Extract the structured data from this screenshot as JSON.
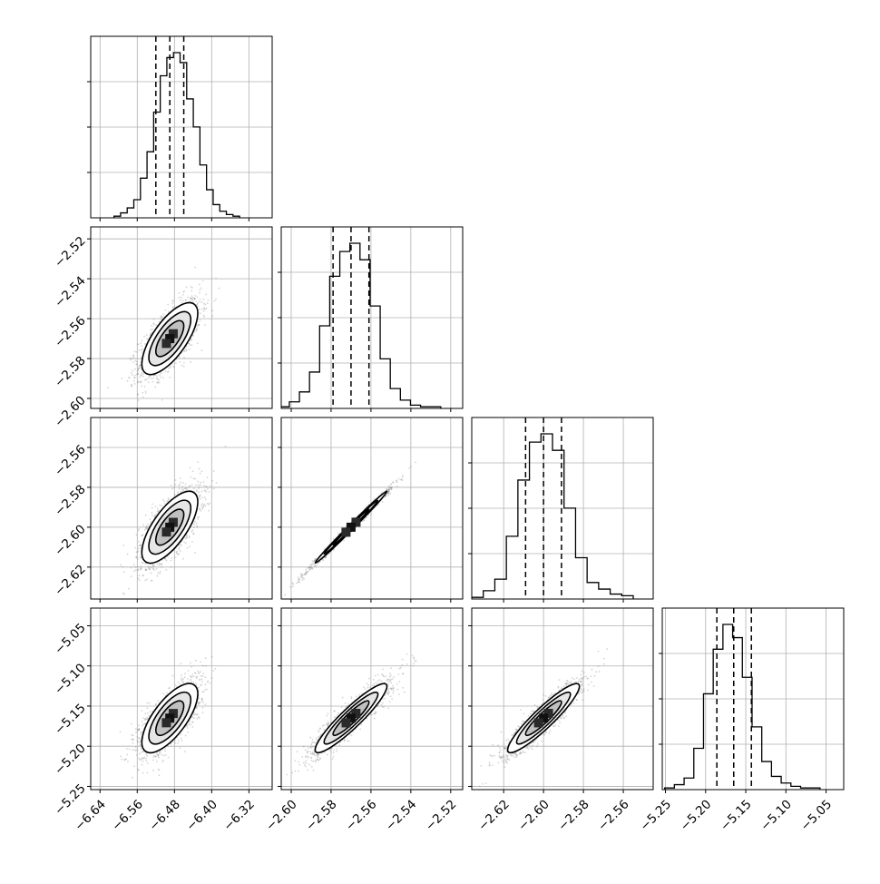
{
  "chart_data": {
    "type": "corner",
    "parameters": [
      {
        "range": [
          -6.66,
          -6.27
        ],
        "ticks": [
          -6.64,
          -6.56,
          -6.48,
          -6.4,
          -6.32
        ],
        "tick_labels": [
          "−6.64",
          "−6.56",
          "−6.48",
          "−6.40",
          "−6.32"
        ],
        "quantiles": [
          -6.52,
          -6.49,
          -6.46
        ]
      },
      {
        "range": [
          -2.605,
          -2.514
        ],
        "ticks": [
          -2.6,
          -2.58,
          -2.56,
          -2.54,
          -2.52
        ],
        "tick_labels": [
          "−2.60",
          "−2.58",
          "−2.56",
          "−2.54",
          "−2.52"
        ],
        "quantiles": [
          -2.579,
          -2.57,
          -2.561
        ]
      },
      {
        "range": [
          -2.636,
          -2.545
        ],
        "ticks": [
          -2.62,
          -2.6,
          -2.58,
          -2.56
        ],
        "tick_labels": [
          "−2.62",
          "−2.60",
          "−2.58",
          "−2.56"
        ],
        "quantiles": [
          -2.609,
          -2.6,
          -2.591
        ]
      },
      {
        "range": [
          -5.254,
          -5.028
        ],
        "ticks": [
          -5.25,
          -5.2,
          -5.15,
          -5.1,
          -5.05
        ],
        "tick_labels": [
          "−5.25",
          "−5.20",
          "−5.15",
          "−5.10",
          "−5.05"
        ],
        "quantiles": [
          -5.186,
          -5.165,
          -5.143
        ]
      }
    ],
    "histograms": [
      [
        0.01,
        0.03,
        0.06,
        0.11,
        0.24,
        0.4,
        0.64,
        0.86,
        0.97,
        1.0,
        0.94,
        0.72,
        0.55,
        0.32,
        0.17,
        0.08,
        0.04,
        0.02,
        0.01
      ],
      [
        0.01,
        0.04,
        0.1,
        0.22,
        0.5,
        0.8,
        0.95,
        1.0,
        0.9,
        0.62,
        0.3,
        0.12,
        0.05,
        0.02,
        0.01,
        0.01
      ],
      [
        0.01,
        0.05,
        0.12,
        0.38,
        0.72,
        0.95,
        1.0,
        0.9,
        0.55,
        0.25,
        0.1,
        0.06,
        0.03,
        0.02
      ],
      [
        0.01,
        0.03,
        0.07,
        0.25,
        0.58,
        0.85,
        1.0,
        0.92,
        0.68,
        0.38,
        0.17,
        0.08,
        0.04,
        0.02,
        0.01,
        0.01
      ]
    ],
    "pairs": [
      {
        "x": 0,
        "y": 1,
        "rho": 0.7
      },
      {
        "x": 0,
        "y": 2,
        "rho": 0.7
      },
      {
        "x": 1,
        "y": 2,
        "rho": 0.995
      },
      {
        "x": 0,
        "y": 3,
        "rho": 0.7
      },
      {
        "x": 1,
        "y": 3,
        "rho": 0.92
      },
      {
        "x": 2,
        "y": 3,
        "rho": 0.92
      }
    ],
    "grid": true,
    "colors": {
      "hist_line": "#000000",
      "scatter": "#888888",
      "grid": "#b0b0b0"
    }
  }
}
